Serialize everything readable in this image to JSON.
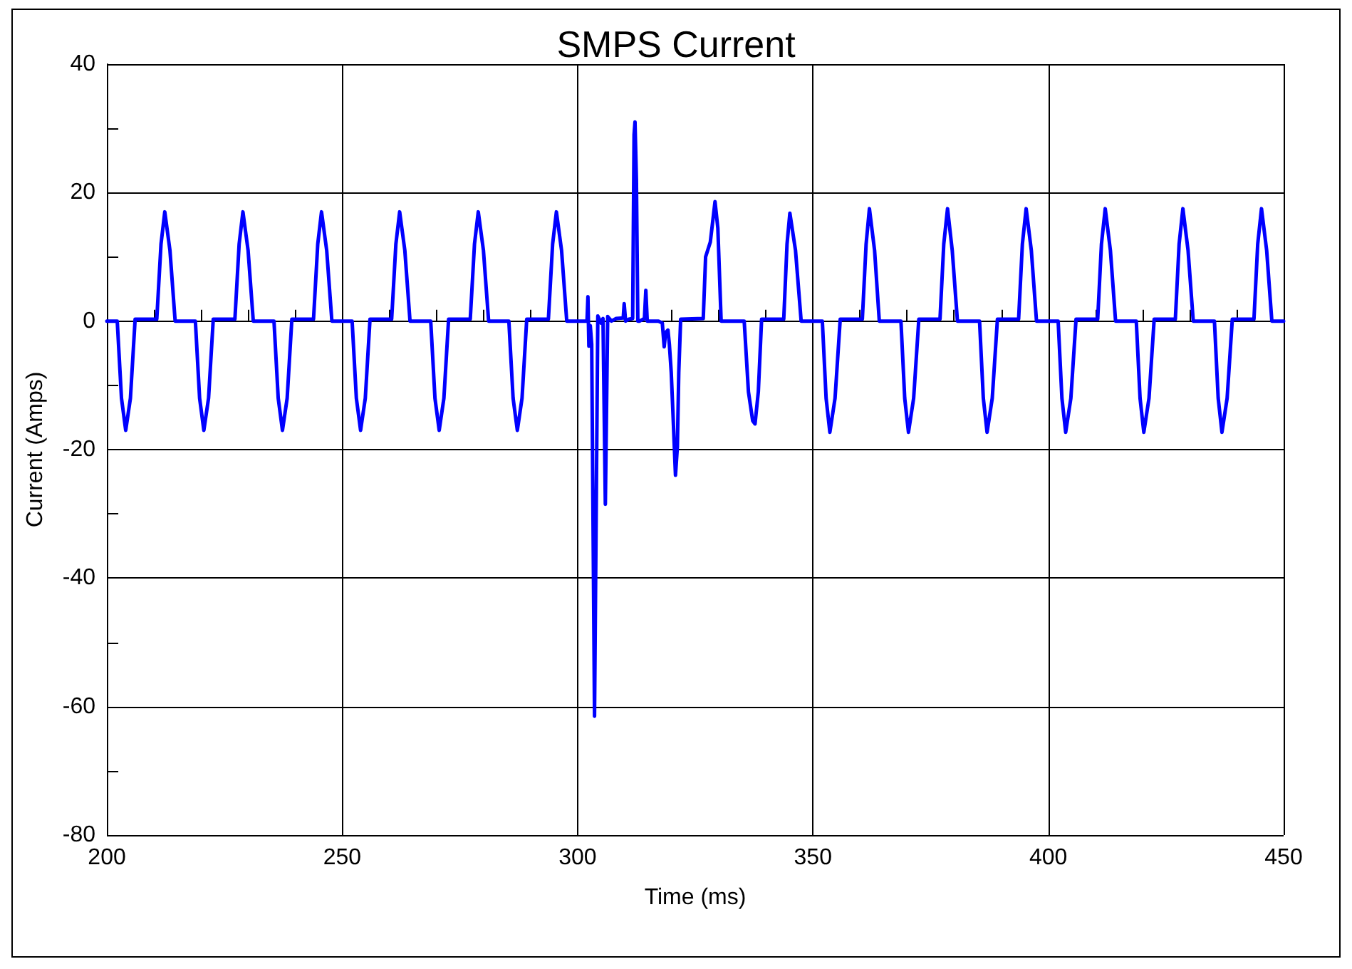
{
  "chart_data": {
    "type": "line",
    "title": "SMPS Current",
    "xlabel": "Time (ms)",
    "ylabel": "Current (Amps)",
    "x": [
      200,
      202.2,
      203.1,
      204.0,
      205.0,
      206.0,
      210.6,
      211.5,
      212.3,
      213.4,
      214.5,
      218.8,
      219.7,
      220.6,
      221.6,
      222.6,
      227.2,
      228.1,
      228.9,
      230.0,
      231.1,
      235.5,
      236.4,
      237.3,
      238.3,
      239.3,
      243.9,
      244.8,
      245.6,
      246.7,
      247.8,
      252.1,
      253.0,
      253.9,
      254.9,
      255.9,
      260.5,
      261.4,
      262.2,
      263.3,
      264.4,
      268.8,
      269.7,
      270.6,
      271.6,
      272.6,
      277.2,
      278.1,
      278.9,
      280.0,
      281.1,
      285.4,
      286.3,
      287.2,
      288.2,
      289.2,
      293.8,
      294.7,
      295.5,
      296.6,
      297.7,
      302.0,
      302.2,
      302.4,
      302.7,
      303.0,
      303.6,
      304.3,
      305.0,
      305.4,
      305.9,
      306.4,
      307.2,
      308.2,
      309.7,
      309.9,
      310.2,
      310.9,
      311.7,
      312.0,
      312.2,
      312.5,
      312.8,
      313.2,
      314.2,
      314.5,
      314.8,
      315.7,
      317.2,
      318.0,
      318.4,
      318.7,
      319.2,
      319.5,
      319.9,
      320.3,
      320.8,
      321.2,
      321.5,
      321.9,
      326.7,
      327.2,
      328.2,
      329.2,
      329.8,
      330.5,
      335.4,
      336.3,
      337.2,
      337.7,
      338.4,
      339.1,
      343.8,
      344.5,
      345.1,
      346.3,
      347.5,
      352.0,
      352.8,
      353.6,
      354.7,
      355.8,
      360.5,
      361.3,
      362.0,
      363.1,
      364.1,
      368.7,
      369.5,
      370.3,
      371.4,
      372.5,
      377.0,
      377.8,
      378.6,
      379.6,
      380.7,
      385.4,
      386.2,
      387.0,
      388.1,
      389.2,
      393.7,
      394.5,
      395.3,
      396.4,
      397.5,
      402.1,
      402.9,
      403.7,
      404.8,
      405.9,
      410.5,
      411.3,
      412.1,
      413.2,
      414.3,
      418.7,
      419.5,
      420.3,
      421.4,
      422.5,
      427.0,
      427.8,
      428.6,
      429.7,
      430.8,
      435.3,
      436.1,
      436.9,
      438.0,
      439.1,
      443.7,
      444.5,
      445.3,
      446.4,
      447.5,
      450
    ],
    "values": [
      0,
      0,
      -12,
      -17,
      -12,
      0.3,
      0.3,
      12,
      17,
      11,
      0,
      0,
      -12,
      -17,
      -12,
      0.3,
      0.3,
      12,
      17,
      11,
      0,
      0,
      -12,
      -17,
      -12,
      0.3,
      0.3,
      12,
      17,
      11,
      0,
      0,
      -12,
      -17,
      -12,
      0.3,
      0.3,
      12,
      17,
      11,
      0,
      0,
      -12,
      -17,
      -12,
      0.3,
      0.3,
      12,
      17,
      11,
      0,
      0,
      -12,
      -17,
      -12,
      0.3,
      0.3,
      12,
      17,
      11,
      0,
      0,
      3.8,
      -3.9,
      -0.7,
      -3.6,
      -61.5,
      0.8,
      -0.3,
      0.4,
      -28.5,
      0.7,
      0,
      0.4,
      0.5,
      2.7,
      0,
      0.3,
      0.4,
      29,
      31,
      22,
      0,
      0,
      0.4,
      4.8,
      0,
      0,
      0,
      -0.3,
      -4,
      -1.8,
      -1.4,
      -3.6,
      -8,
      -15,
      -24,
      -19.6,
      -8,
      0.3,
      0.4,
      10,
      12.3,
      18.6,
      14.5,
      0,
      0,
      -11,
      -15.5,
      -16,
      -11,
      0.3,
      0.3,
      12,
      16.8,
      11,
      0,
      0,
      -12,
      -17.3,
      -12,
      0.3,
      0.3,
      12,
      17.5,
      11,
      0,
      0,
      -12,
      -17.3,
      -12,
      0.3,
      0.3,
      12,
      17.5,
      11,
      0,
      0,
      -12,
      -17.3,
      -12,
      0.3,
      0.3,
      12,
      17.5,
      11,
      0,
      0,
      -12,
      -17.3,
      -12,
      0.3,
      0.3,
      12,
      17.5,
      11,
      0,
      0,
      -12,
      -17.3,
      -12,
      0.3,
      0.3,
      12,
      17.5,
      11,
      0,
      0,
      -12,
      -17.3,
      -12,
      0.3,
      0.3,
      12,
      17.5,
      11,
      0,
      0
    ],
    "color": "#0000ff",
    "xlim": [
      200,
      450
    ],
    "ylim": [
      -80,
      40
    ],
    "xticks": [
      200,
      {
        "value": 210,
        "label": null
      },
      {
        "value": 220,
        "label": null
      },
      {
        "value": 230,
        "label": null
      },
      {
        "value": 240,
        "label": null
      },
      250,
      {
        "value": 260,
        "label": null
      },
      {
        "value": 270,
        "label": null
      },
      {
        "value": 280,
        "label": null
      },
      {
        "value": 290,
        "label": null
      },
      300,
      {
        "value": 310,
        "label": null
      },
      {
        "value": 320,
        "label": null
      },
      {
        "value": 330,
        "label": null
      },
      {
        "value": 340,
        "label": null
      },
      350,
      {
        "value": 360,
        "label": null
      },
      {
        "value": 370,
        "label": null
      },
      {
        "value": 380,
        "label": null
      },
      {
        "value": 390,
        "label": null
      },
      400,
      {
        "value": 410,
        "label": null
      },
      {
        "value": 420,
        "label": null
      },
      {
        "value": 430,
        "label": null
      },
      {
        "value": 440,
        "label": null
      },
      450
    ],
    "yticks": [
      -80,
      {
        "value": -70,
        "label": null
      },
      -60,
      {
        "value": -50,
        "label": null
      },
      -40,
      {
        "value": -30,
        "label": null
      },
      -20,
      {
        "value": -10,
        "label": null
      },
      0,
      {
        "value": 10,
        "label": null
      },
      20,
      {
        "value": 30,
        "label": null
      },
      40
    ],
    "grid": true,
    "marker": "none",
    "line_style": "solid"
  }
}
